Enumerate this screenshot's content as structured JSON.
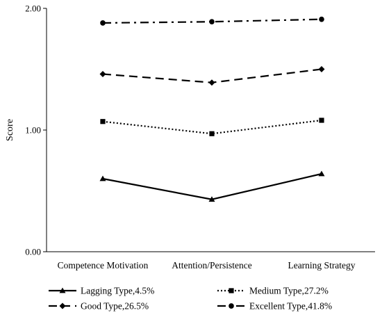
{
  "chart_data": {
    "type": "line",
    "ylabel": "Score",
    "ylim": [
      0,
      2
    ],
    "yticks": [
      "0.00",
      "1.00",
      "2.00"
    ],
    "categories": [
      "Competence Motivation",
      "Attention/Persistence",
      "Learning Strategy"
    ],
    "grid": false,
    "legend_position": "bottom",
    "series": [
      {
        "name": "Lagging Type,4.5%",
        "values": [
          0.6,
          0.43,
          0.64
        ],
        "marker": "triangle",
        "line_style": "solid",
        "color": "#000000"
      },
      {
        "name": "Medium Type,27.2%",
        "values": [
          1.07,
          0.97,
          1.08
        ],
        "marker": "square",
        "line_style": "dotted",
        "color": "#000000"
      },
      {
        "name": "Good Type,26.5%",
        "values": [
          1.46,
          1.39,
          1.5
        ],
        "marker": "diamond",
        "line_style": "dashed",
        "color": "#000000"
      },
      {
        "name": "Excellent Type,41.8%",
        "values": [
          1.88,
          1.89,
          1.91
        ],
        "marker": "circle",
        "line_style": "dash-dot",
        "color": "#000000"
      }
    ]
  }
}
